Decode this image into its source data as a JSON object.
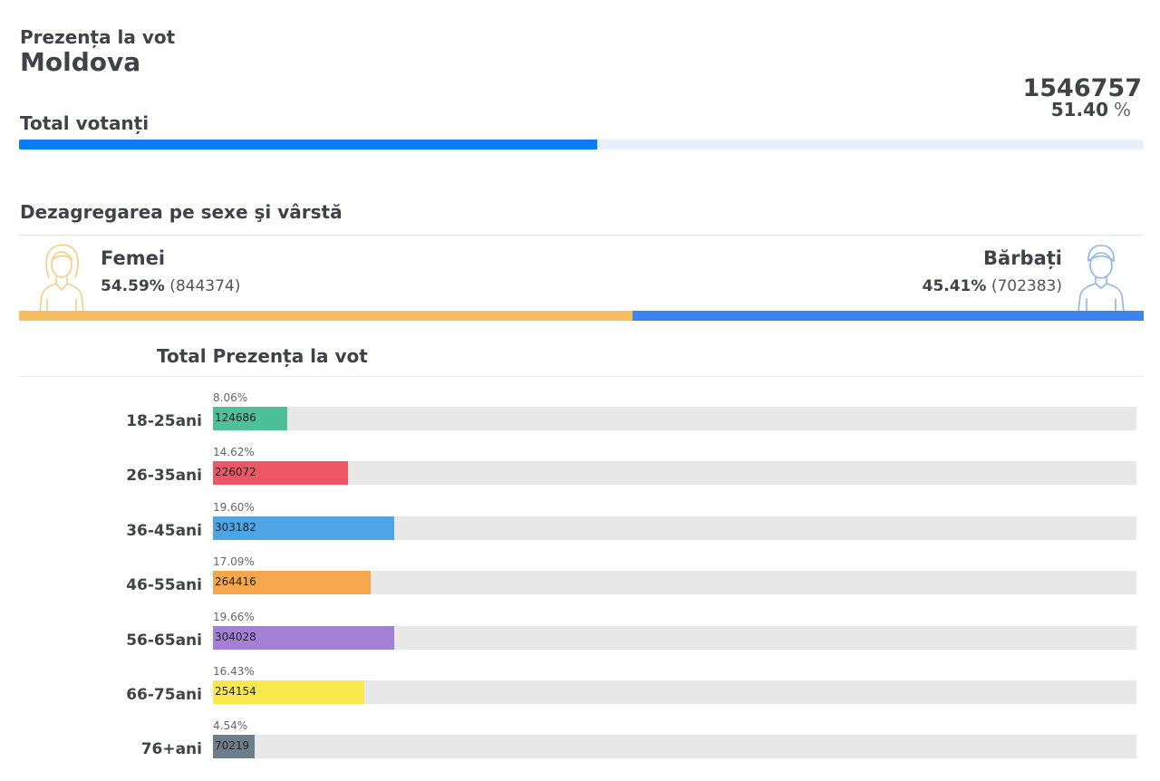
{
  "header": {
    "subtitle": "Prezența la vot",
    "title": "Moldova"
  },
  "total": {
    "label": "Total votanți",
    "count": "1546757",
    "percent": "51.40",
    "percent_unit": "%",
    "fraction": 0.514,
    "bar_color": "#0a7cf5",
    "track_color": "#e8f1fb"
  },
  "gender": {
    "section_title": "Dezagregarea pe sexe şi vârstă",
    "female": {
      "label": "Femei",
      "percent": "54.59%",
      "count": "(844374)",
      "share": 0.5459,
      "color": "#f8bd5c",
      "icon": "woman-icon"
    },
    "male": {
      "label": "Bărbați",
      "percent": "45.41%",
      "count": "(702383)",
      "share": 0.4541,
      "color": "#3c84ee",
      "icon": "man-icon"
    }
  },
  "chart_data": {
    "type": "bar",
    "orientation": "horizontal",
    "title": "Total Prezența la vot",
    "categories": [
      "18-25ani",
      "26-35ani",
      "36-45ani",
      "46-55ani",
      "56-65ani",
      "66-75ani",
      "76+ani"
    ],
    "values": [
      124686,
      226072,
      303182,
      264416,
      304028,
      254154,
      70219
    ],
    "percent_labels": [
      "8.06%",
      "14.62%",
      "19.60%",
      "17.09%",
      "19.66%",
      "16.43%",
      "4.54%"
    ],
    "percents": [
      8.06,
      14.62,
      19.6,
      17.09,
      19.66,
      16.43,
      4.54
    ],
    "xlim": [
      0,
      100
    ],
    "colors": [
      "#4dbf99",
      "#ec5766",
      "#4ea4e4",
      "#f5a64f",
      "#a47fd6",
      "#f9e94f",
      "#6e7d8a"
    ],
    "track_color": "#e8e8e8"
  }
}
